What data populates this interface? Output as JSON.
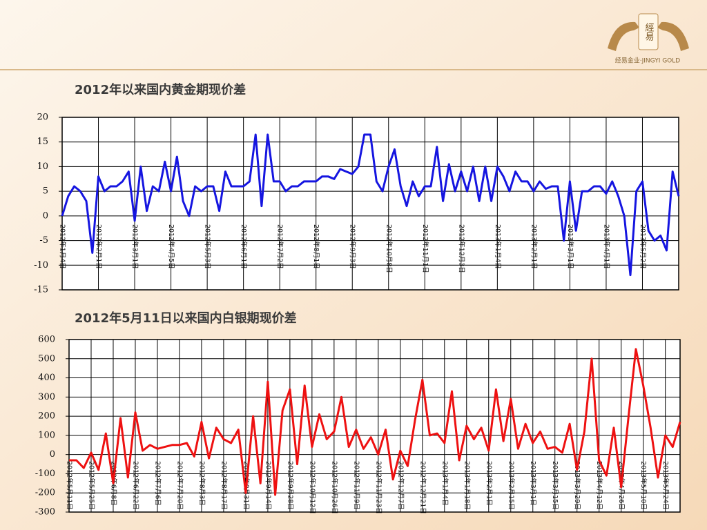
{
  "logo": {
    "mark": "經易",
    "caption": "经易金业·JINGYI GOLD"
  },
  "chart_data": [
    {
      "type": "line",
      "title": "2012年以来国内黄金期现价差",
      "color": "#1515e0",
      "grid": true,
      "categories": [
        "2012年1月4日",
        null,
        null,
        null,
        null,
        null,
        "2012年2月1日",
        null,
        null,
        null,
        null,
        null,
        "2012年3月1日",
        null,
        null,
        null,
        null,
        null,
        "2012年4月5日",
        null,
        null,
        null,
        null,
        null,
        "2012年5月3日",
        null,
        null,
        null,
        null,
        null,
        "2012年6月1日",
        null,
        null,
        null,
        null,
        null,
        "2012年7月2日",
        null,
        null,
        null,
        null,
        null,
        "2012年8月1日",
        null,
        null,
        null,
        null,
        null,
        "2012年9月3日",
        null,
        null,
        null,
        null,
        null,
        "2012年10月8日",
        null,
        null,
        null,
        null,
        null,
        "2012年11月1日",
        null,
        null,
        null,
        null,
        null,
        "2012年12月3日",
        null,
        null,
        null,
        null,
        null,
        "2013年1月4日",
        null,
        null,
        null,
        null,
        null,
        "2013年2月1日",
        null,
        null,
        null,
        null,
        null,
        "2013年3月1日",
        null,
        null,
        null,
        null,
        null,
        "2013年4月1日",
        null,
        null,
        null,
        null,
        null,
        "2013年5月2日",
        null,
        null,
        null,
        null,
        null,
        null
      ],
      "values": [
        0,
        4,
        6,
        5,
        3,
        -7.5,
        8,
        5,
        6,
        6,
        7,
        9,
        -1,
        10,
        1,
        6,
        5,
        11,
        5,
        12,
        3,
        0,
        6,
        5,
        6,
        6,
        1,
        9,
        6,
        6,
        6,
        7,
        16.5,
        2,
        16.5,
        7,
        7,
        5,
        6,
        6,
        7,
        7,
        7,
        8,
        8,
        7.5,
        9.5,
        9,
        8.5,
        10,
        16.5,
        16.5,
        7,
        5,
        10,
        13.5,
        6,
        2,
        7,
        4,
        6,
        6,
        14,
        3,
        10.5,
        5,
        9,
        5,
        10,
        3,
        10,
        3,
        10,
        8,
        5,
        9,
        7,
        7,
        5,
        7,
        5.5,
        6,
        6,
        -5,
        7,
        -3,
        5,
        5,
        6,
        6,
        4.5,
        7,
        4,
        0,
        -12,
        5,
        7,
        -3,
        -5,
        -4,
        -7,
        9,
        4
      ],
      "ylim": [
        -15,
        20
      ],
      "yticks": [
        -15,
        -10,
        -5,
        0,
        5,
        10,
        15,
        20
      ]
    },
    {
      "type": "line",
      "title": "2012年5月11日以来国内白银期现价差",
      "color": "#ee1111",
      "grid": true,
      "categories": [
        "2012年5月11日",
        null,
        null,
        "2012年5月25日",
        null,
        null,
        "2012年6月8日",
        null,
        null,
        "2012年6月22日",
        null,
        null,
        "2012年7月6日",
        null,
        null,
        "2012年7月20日",
        null,
        null,
        "2012年8月3日",
        null,
        null,
        "2012年8月17日",
        null,
        null,
        "2012年8月31日",
        null,
        null,
        "2012年9月14日",
        null,
        null,
        "2012年9月28日",
        null,
        null,
        "2012年10月12日",
        null,
        null,
        "2012年10月26日",
        null,
        null,
        "2012年11月9日",
        null,
        null,
        "2012年11月23日",
        null,
        null,
        "2012年12月7日",
        null,
        null,
        "2012年12月21日",
        null,
        null,
        "2013年1月4日",
        null,
        null,
        "2013年1月18日",
        null,
        null,
        "2013年2月1日",
        null,
        null,
        "2013年2月15日",
        null,
        null,
        "2013年3月1日",
        null,
        null,
        "2013年3月15日",
        null,
        null,
        "2013年3月29日",
        null,
        null,
        "2013年4月12日",
        null,
        null,
        "2013年4月26日",
        null,
        null,
        "2013年5月10日",
        null,
        null,
        "2013年5月24日",
        null,
        null
      ],
      "values": [
        -30,
        -30,
        -70,
        10,
        -80,
        110,
        -150,
        190,
        -120,
        220,
        20,
        50,
        30,
        40,
        50,
        50,
        60,
        -10,
        170,
        -20,
        140,
        80,
        60,
        130,
        -200,
        200,
        -150,
        380,
        -210,
        230,
        340,
        -50,
        360,
        40,
        210,
        80,
        120,
        300,
        40,
        130,
        30,
        90,
        0,
        130,
        -130,
        20,
        -60,
        180,
        390,
        100,
        110,
        60,
        330,
        -30,
        150,
        80,
        140,
        20,
        340,
        70,
        290,
        30,
        160,
        60,
        120,
        30,
        40,
        10,
        160,
        -80,
        120,
        500,
        -30,
        -110,
        140,
        -170,
        200,
        550,
        360,
        140,
        -120,
        100,
        40,
        170
      ],
      "ylim": [
        -300,
        600
      ],
      "yticks": [
        -300,
        -200,
        -100,
        0,
        100,
        200,
        300,
        400,
        500,
        600
      ]
    }
  ]
}
